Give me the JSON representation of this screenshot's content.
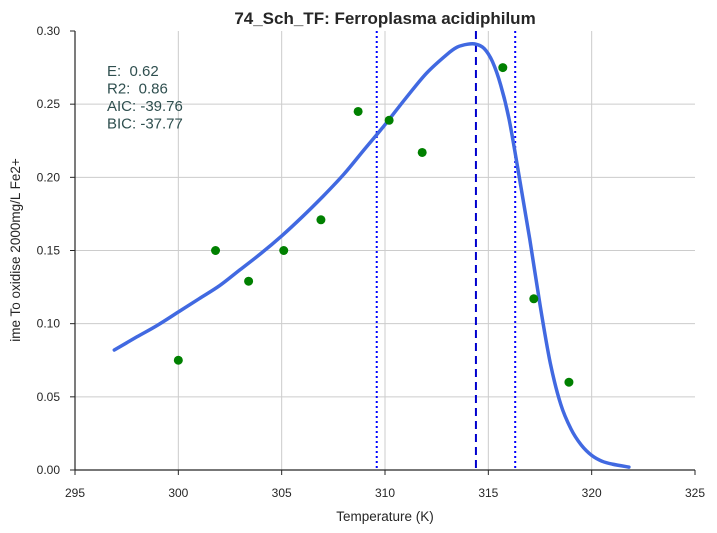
{
  "chart_data": {
    "type": "scatter",
    "title": "74_Sch_TF: Ferroplasma acidiphilum",
    "xlabel": "Temperature (K)",
    "ylabel": "ime To oxidise 2000mg/L Fe2+",
    "xlim": [
      295,
      325
    ],
    "ylim": [
      0,
      0.3
    ],
    "x_ticks": [
      "295",
      "300",
      "305",
      "310",
      "315",
      "320",
      "325"
    ],
    "y_ticks": [
      "0.00",
      "0.05",
      "0.10",
      "0.15",
      "0.20",
      "0.25",
      "0.30"
    ],
    "grid": true,
    "points": {
      "color": "#008000",
      "x": [
        300.0,
        301.8,
        303.4,
        305.1,
        306.9,
        308.7,
        310.2,
        311.8,
        315.7,
        317.2,
        318.9
      ],
      "y": [
        0.075,
        0.15,
        0.129,
        0.15,
        0.171,
        0.245,
        0.239,
        0.217,
        0.275,
        0.117,
        0.06
      ]
    },
    "fit_curve": {
      "color": "#4169E1",
      "x": [
        296.9,
        298.0,
        299.0,
        300.0,
        301.0,
        302.0,
        303.0,
        304.0,
        305.0,
        306.0,
        307.0,
        308.0,
        309.0,
        310.0,
        311.0,
        312.0,
        313.0,
        313.5,
        314.0,
        314.4,
        314.8,
        315.2,
        315.6,
        316.0,
        316.5,
        317.0,
        317.5,
        318.0,
        318.5,
        319.0,
        319.5,
        320.0,
        320.5,
        321.0,
        321.8
      ],
      "y": [
        0.082,
        0.091,
        0.099,
        0.108,
        0.117,
        0.126,
        0.137,
        0.148,
        0.16,
        0.173,
        0.187,
        0.202,
        0.219,
        0.236,
        0.254,
        0.271,
        0.284,
        0.289,
        0.291,
        0.291,
        0.288,
        0.279,
        0.263,
        0.24,
        0.2,
        0.158,
        0.113,
        0.073,
        0.045,
        0.028,
        0.017,
        0.01,
        0.006,
        0.004,
        0.002
      ]
    },
    "vlines": [
      {
        "x": 314.4,
        "style": "dashed",
        "color": "#0000CD"
      },
      {
        "x": 309.6,
        "style": "dotted",
        "color": "#0000FF"
      },
      {
        "x": 316.3,
        "style": "dotted",
        "color": "#0000FF"
      }
    ],
    "annotations": [
      "E:  0.62",
      "R2:  0.86",
      "AIC: -39.76",
      "BIC: -37.77"
    ],
    "annotation_color": "#2F4F4F"
  }
}
